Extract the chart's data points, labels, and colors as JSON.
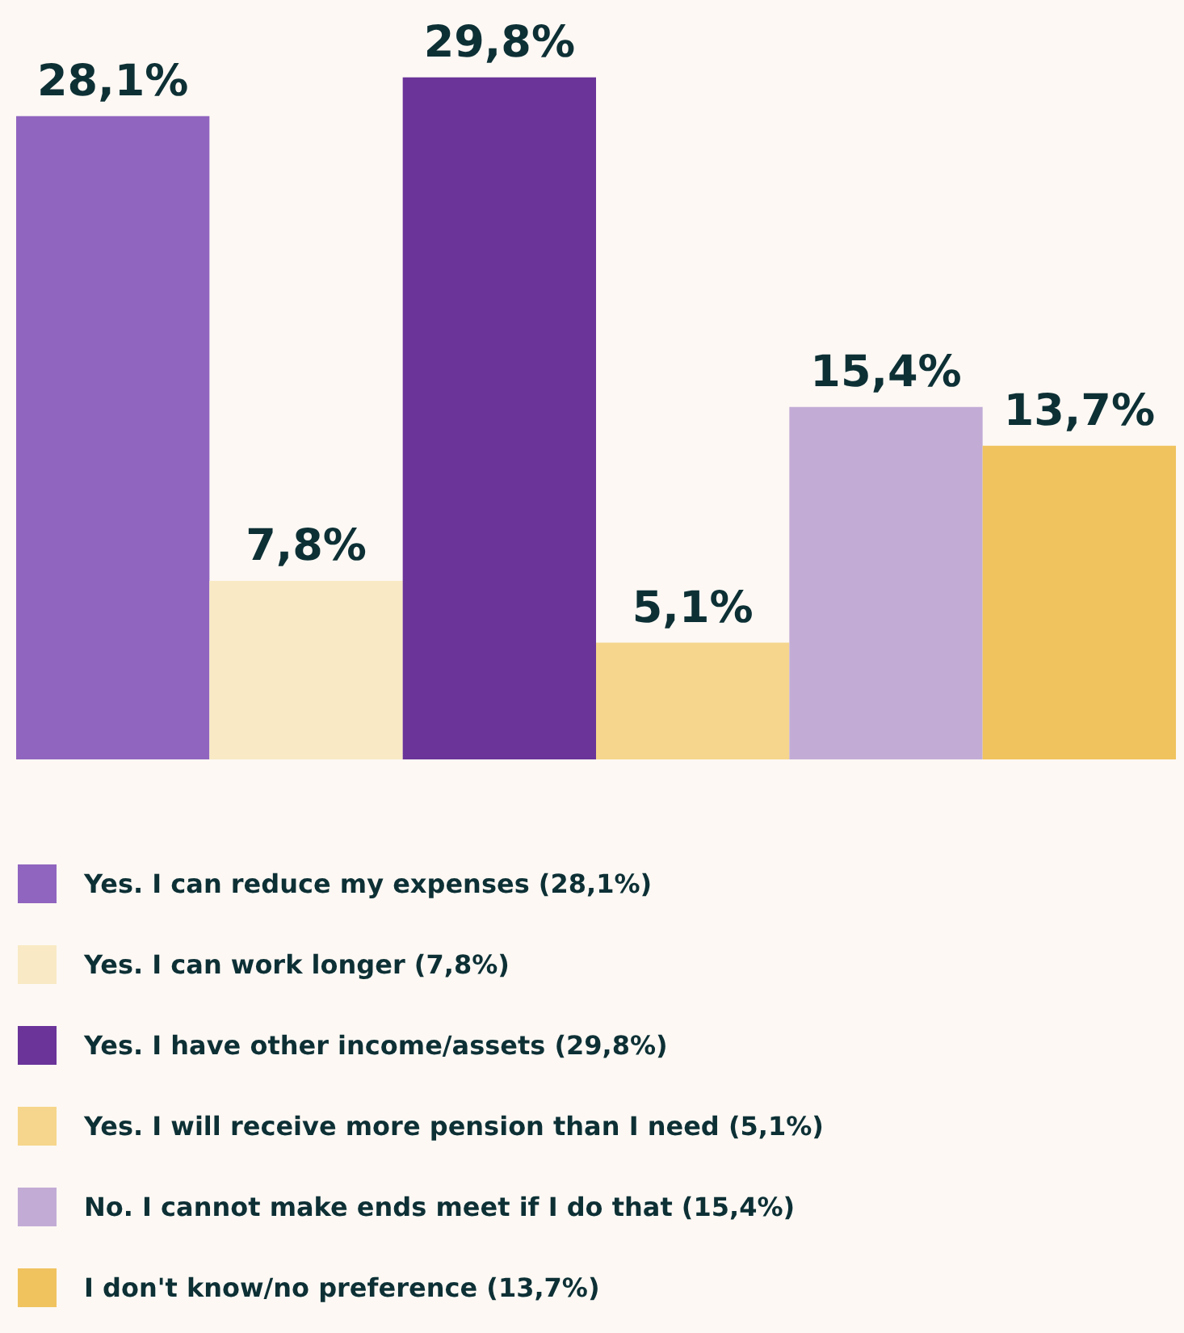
{
  "chart_data": {
    "type": "bar",
    "categories": [
      null
    ],
    "ylim": [
      0,
      30
    ],
    "legend": "bottom left",
    "grid": false,
    "tick_labels": false,
    "series": [
      {
        "name": "Yes. I can reduce my expenses (28,1%)",
        "color": "#9065bf",
        "values": [
          28.1
        ],
        "value_labels": [
          "28,1%"
        ]
      },
      {
        "name": "Yes. I can work longer (7,8%)",
        "color": "#f9eac5",
        "values": [
          7.8
        ],
        "value_labels": [
          "7,8%"
        ]
      },
      {
        "name": "Yes. I have other income/assets (29,8%)",
        "color": "#6a3499",
        "values": [
          29.8
        ],
        "value_labels": [
          "29,8%"
        ]
      },
      {
        "name": "Yes. I will receive more pension than I need (5,1%)",
        "color": "#f6d68c",
        "values": [
          5.1
        ],
        "value_labels": [
          "5,1%"
        ]
      },
      {
        "name": "No. I cannot make ends meet if I do that (15,4%)",
        "color": "#c2acd6",
        "values": [
          15.4
        ],
        "value_labels": [
          "15,4%"
        ]
      },
      {
        "name": "I don't know/no preference (13,7%)",
        "color": "#f0c35f",
        "values": [
          13.7
        ],
        "value_labels": [
          "13,7%"
        ]
      }
    ]
  }
}
